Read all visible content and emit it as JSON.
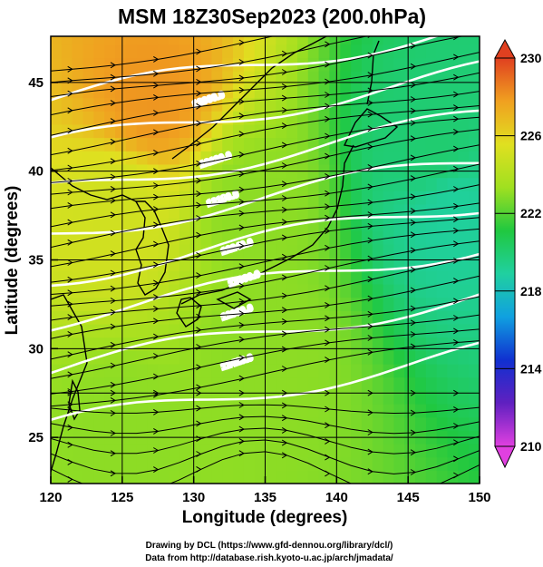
{
  "chart_data": {
    "type": "heatmap",
    "title": "MSM 18Z30Sep2023 (200.0hPa)",
    "xlabel": "Longitude (degrees)",
    "ylabel": "Latitude  (degrees)",
    "xlim": [
      120,
      150
    ],
    "ylim": [
      22.4,
      47.6
    ],
    "x_ticks": [
      120,
      125,
      130,
      135,
      140,
      145,
      150
    ],
    "y_ticks": [
      25,
      30,
      35,
      40,
      45
    ],
    "grid": true,
    "colorbar": {
      "min": 210,
      "max": 230,
      "ticks": [
        210,
        214,
        218,
        222,
        226,
        230
      ],
      "colors": [
        "#e040e0",
        "#6020c0",
        "#1030d0",
        "#10a0e0",
        "#20d0a0",
        "#20c840",
        "#a0e020",
        "#e0e020",
        "#f0a020",
        "#e04020"
      ],
      "extend": "both"
    },
    "temperature_field": [
      {
        "lon": 127,
        "lat": 44,
        "value": 228
      },
      {
        "lon": 125,
        "lat": 38,
        "value": 225
      },
      {
        "lon": 134,
        "lat": 38,
        "value": 223
      },
      {
        "lon": 147,
        "lat": 41,
        "value": 220
      },
      {
        "lon": 148,
        "lat": 38,
        "value": 219
      },
      {
        "lon": 135,
        "lat": 30,
        "value": 223
      },
      {
        "lon": 125,
        "lat": 25,
        "value": 223
      }
    ],
    "contour_labels": [
      "12060.0",
      "12120.0",
      "12180.0",
      "12240.0",
      "12300.0",
      "12360.0",
      "12420.0"
    ]
  },
  "credits": {
    "line1": "Drawing by DCL (https://www.gfd-dennou.org/library/dcl/)",
    "line2": "Data from http://database.rish.kyoto-u.ac.jp/arch/jmadata/"
  }
}
